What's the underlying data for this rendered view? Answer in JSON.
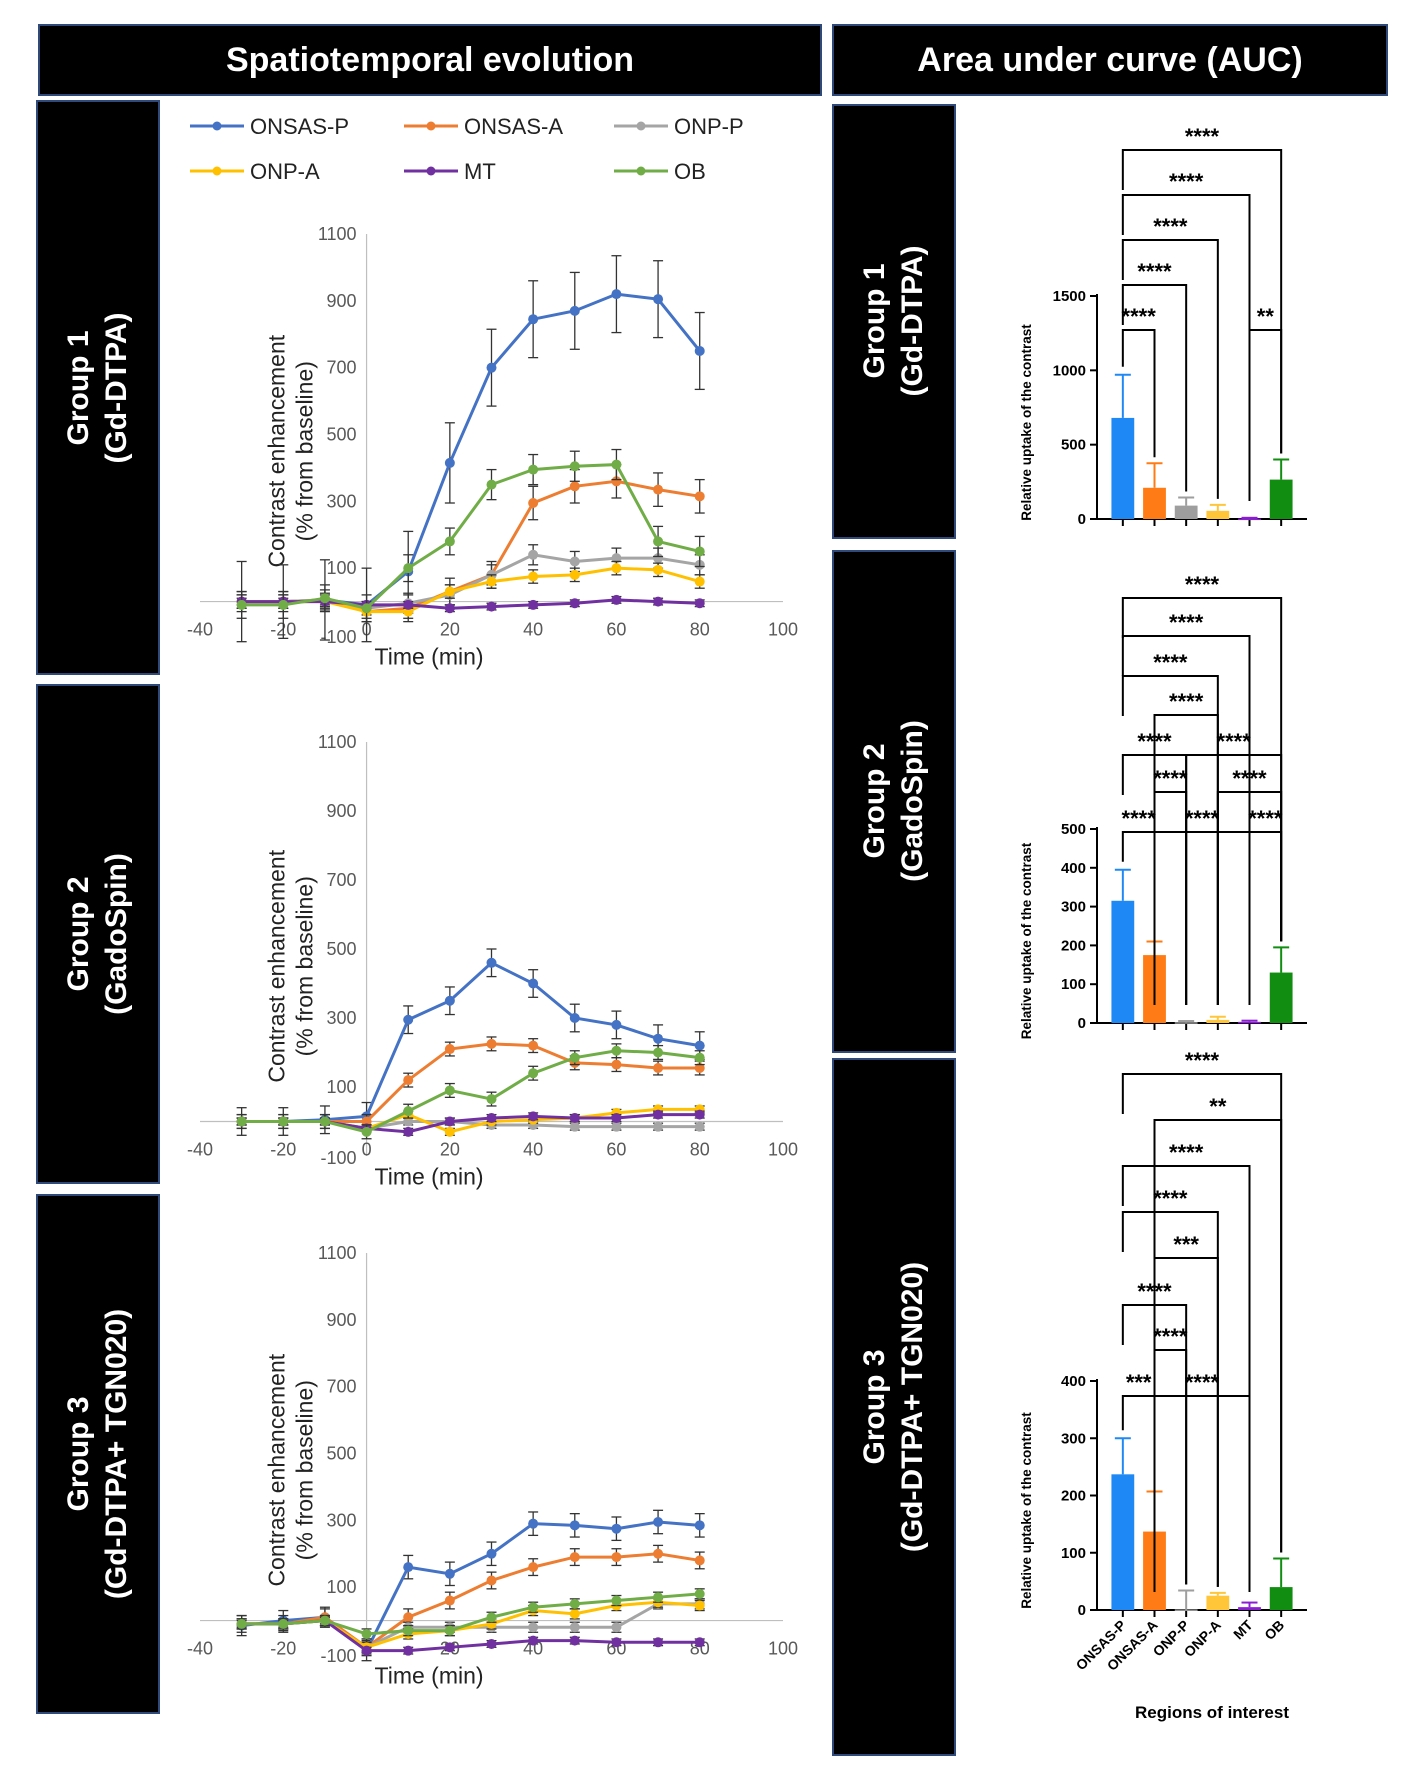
{
  "headers": {
    "left": "Spatiotemporal evolution",
    "right": "Area under curve (AUC)"
  },
  "groups": [
    {
      "line1": "Group 1",
      "line2": "(Gd-DTPA)"
    },
    {
      "line1": "Group 2",
      "line2": "(GadoSpin)"
    },
    {
      "line1": "Group 3",
      "line2": "(Gd-DTPA+ TGN020)"
    }
  ],
  "legend": [
    {
      "name": "ONSAS-P",
      "color": "#4472c4"
    },
    {
      "name": "ONSAS-A",
      "color": "#ed7d31"
    },
    {
      "name": "ONP-P",
      "color": "#a5a5a5"
    },
    {
      "name": "ONP-A",
      "color": "#ffc000"
    },
    {
      "name": "MT",
      "color": "#7030a0"
    },
    {
      "name": "OB",
      "color": "#70ad47"
    }
  ],
  "chart_data": [
    {
      "type": "line",
      "group": "Group 1 (Gd-DTPA)",
      "xlabel": "Time (min)",
      "ylabel_line1": "Contrast enhancement",
      "ylabel_line2": "(% from baseline)",
      "xlim": [
        -40,
        100
      ],
      "ylim": [
        -100,
        1100
      ],
      "x_ticks": [
        -40,
        -20,
        0,
        20,
        40,
        60,
        80,
        100
      ],
      "y_ticks": [
        -100,
        100,
        300,
        500,
        700,
        900,
        1100
      ],
      "x": [
        -30,
        -20,
        -10,
        0,
        10,
        20,
        30,
        40,
        50,
        60,
        70,
        80
      ],
      "series": [
        {
          "name": "ONSAS-P",
          "values": [
            0,
            0,
            5,
            -10,
            90,
            415,
            700,
            845,
            870,
            920,
            905,
            750
          ],
          "errors": [
            120,
            110,
            120,
            110,
            120,
            120,
            115,
            115,
            115,
            115,
            115,
            115
          ]
        },
        {
          "name": "ONSAS-A",
          "values": [
            0,
            0,
            5,
            -30,
            -20,
            30,
            80,
            295,
            345,
            360,
            335,
            315
          ],
          "errors": [
            30,
            30,
            30,
            30,
            40,
            40,
            40,
            50,
            50,
            50,
            50,
            50
          ]
        },
        {
          "name": "ONP-P",
          "values": [
            0,
            0,
            5,
            -20,
            -5,
            20,
            80,
            140,
            120,
            130,
            130,
            110
          ],
          "errors": [
            20,
            20,
            20,
            20,
            30,
            30,
            30,
            30,
            30,
            30,
            30,
            30
          ]
        },
        {
          "name": "ONP-A",
          "values": [
            0,
            0,
            0,
            -30,
            -30,
            30,
            60,
            75,
            80,
            100,
            95,
            60
          ],
          "errors": [
            20,
            20,
            20,
            20,
            20,
            20,
            20,
            20,
            20,
            20,
            20,
            20
          ]
        },
        {
          "name": "MT",
          "values": [
            0,
            0,
            0,
            -10,
            -10,
            -20,
            -15,
            -10,
            -5,
            5,
            0,
            -5
          ],
          "errors": [
            10,
            10,
            10,
            10,
            10,
            10,
            10,
            10,
            10,
            10,
            10,
            10
          ]
        },
        {
          "name": "OB",
          "values": [
            -10,
            -10,
            10,
            -20,
            100,
            180,
            350,
            395,
            405,
            410,
            180,
            150
          ],
          "errors": [
            40,
            40,
            40,
            40,
            40,
            40,
            45,
            45,
            45,
            45,
            45,
            45
          ]
        }
      ]
    },
    {
      "type": "line",
      "group": "Group 2 (GadoSpin)",
      "xlabel": "Time (min)",
      "ylabel_line1": "Contrast enhancement",
      "ylabel_line2": "(% from baseline)",
      "xlim": [
        -40,
        100
      ],
      "ylim": [
        -100,
        1100
      ],
      "x_ticks": [
        -40,
        -20,
        0,
        20,
        40,
        60,
        80,
        100
      ],
      "y_ticks": [
        -100,
        100,
        300,
        500,
        700,
        900,
        1100
      ],
      "x": [
        -30,
        -20,
        -10,
        0,
        10,
        20,
        30,
        40,
        50,
        60,
        70,
        80
      ],
      "series": [
        {
          "name": "ONSAS-P",
          "values": [
            0,
            0,
            5,
            15,
            295,
            350,
            460,
            400,
            300,
            280,
            240,
            220
          ],
          "errors": [
            40,
            40,
            40,
            40,
            40,
            40,
            40,
            40,
            40,
            40,
            40,
            40
          ]
        },
        {
          "name": "ONSAS-A",
          "values": [
            0,
            0,
            0,
            0,
            120,
            210,
            225,
            220,
            170,
            165,
            155,
            155
          ],
          "errors": [
            20,
            20,
            20,
            20,
            20,
            20,
            20,
            20,
            20,
            20,
            20,
            20
          ]
        },
        {
          "name": "ONP-P",
          "values": [
            0,
            0,
            0,
            -20,
            0,
            0,
            -10,
            -10,
            -15,
            -15,
            -15,
            -15
          ],
          "errors": [
            10,
            10,
            10,
            10,
            10,
            10,
            10,
            10,
            10,
            10,
            10,
            10
          ]
        },
        {
          "name": "ONP-A",
          "values": [
            0,
            0,
            0,
            -20,
            20,
            -30,
            0,
            5,
            10,
            25,
            35,
            35
          ],
          "errors": [
            10,
            10,
            10,
            10,
            10,
            10,
            10,
            10,
            10,
            10,
            10,
            10
          ]
        },
        {
          "name": "MT",
          "values": [
            0,
            0,
            0,
            -20,
            -30,
            0,
            10,
            15,
            10,
            10,
            20,
            20
          ],
          "errors": [
            10,
            10,
            10,
            10,
            10,
            10,
            10,
            10,
            10,
            10,
            10,
            10
          ]
        },
        {
          "name": "OB",
          "values": [
            0,
            0,
            0,
            -30,
            30,
            90,
            65,
            140,
            185,
            205,
            200,
            185
          ],
          "errors": [
            20,
            20,
            20,
            20,
            20,
            20,
            20,
            20,
            20,
            20,
            20,
            20
          ]
        }
      ]
    },
    {
      "type": "line",
      "group": "Group 3 (Gd-DTPA+ TGN020)",
      "xlabel": "Time (min)",
      "ylabel_line1": "Contrast enhancement",
      "ylabel_line2": "(% from baseline)",
      "xlim": [
        -40,
        100
      ],
      "ylim": [
        -100,
        1100
      ],
      "x_ticks": [
        -40,
        -20,
        0,
        20,
        40,
        60,
        80,
        100
      ],
      "y_ticks": [
        -100,
        100,
        300,
        500,
        700,
        900,
        1100
      ],
      "x": [
        -30,
        -20,
        -10,
        0,
        10,
        20,
        30,
        40,
        50,
        60,
        70,
        80
      ],
      "series": [
        {
          "name": "ONSAS-P",
          "values": [
            -15,
            0,
            10,
            -90,
            160,
            140,
            200,
            290,
            285,
            275,
            295,
            285
          ],
          "errors": [
            30,
            30,
            30,
            30,
            35,
            35,
            35,
            35,
            35,
            35,
            35,
            35
          ]
        },
        {
          "name": "ONSAS-A",
          "values": [
            -10,
            -10,
            10,
            -80,
            10,
            60,
            120,
            160,
            190,
            190,
            200,
            180
          ],
          "errors": [
            25,
            25,
            25,
            25,
            25,
            25,
            25,
            25,
            25,
            25,
            25,
            25
          ]
        },
        {
          "name": "ONP-P",
          "values": [
            -10,
            -10,
            0,
            -80,
            -20,
            -20,
            -20,
            -20,
            -20,
            -20,
            50,
            50
          ],
          "errors": [
            15,
            15,
            15,
            15,
            15,
            15,
            15,
            15,
            15,
            15,
            15,
            15
          ]
        },
        {
          "name": "ONP-A",
          "values": [
            -10,
            -10,
            0,
            -80,
            -40,
            -30,
            -10,
            30,
            20,
            45,
            55,
            45
          ],
          "errors": [
            15,
            15,
            15,
            15,
            15,
            15,
            15,
            15,
            15,
            15,
            15,
            15
          ]
        },
        {
          "name": "MT",
          "values": [
            -10,
            -10,
            0,
            -90,
            -90,
            -80,
            -70,
            -60,
            -60,
            -65,
            -65,
            -65
          ],
          "errors": [
            10,
            10,
            10,
            10,
            10,
            10,
            10,
            10,
            10,
            10,
            10,
            10
          ]
        },
        {
          "name": "OB",
          "values": [
            -10,
            -10,
            0,
            -40,
            -30,
            -30,
            10,
            40,
            50,
            60,
            70,
            80
          ],
          "errors": [
            15,
            15,
            15,
            15,
            15,
            15,
            15,
            15,
            15,
            15,
            15,
            15
          ]
        }
      ]
    },
    {
      "type": "bar",
      "group": "Group 1 (Gd-DTPA)",
      "ylabel": "Relative uptake of the contrast",
      "ylim": [
        0,
        1500
      ],
      "y_ticks": [
        0,
        500,
        1000,
        1500
      ],
      "categories": [
        "ONSAS-P",
        "ONSAS-A",
        "ONP-P",
        "ONP-A",
        "MT",
        "OB"
      ],
      "values": [
        680,
        210,
        90,
        55,
        3,
        265
      ],
      "errors": [
        290,
        165,
        55,
        40,
        5,
        135
      ],
      "sig": [
        {
          "from": 0,
          "to": 5,
          "label": "****"
        },
        {
          "from": 0,
          "to": 4,
          "label": "****"
        },
        {
          "from": 0,
          "to": 3,
          "label": "****"
        },
        {
          "from": 0,
          "to": 2,
          "label": "****"
        },
        {
          "from": 0,
          "to": 1,
          "label": "****"
        },
        {
          "from": 4,
          "to": 5,
          "label": "**"
        }
      ]
    },
    {
      "type": "bar",
      "group": "Group 2 (GadoSpin)",
      "ylabel": "Relative uptake of the contrast",
      "ylim": [
        0,
        500
      ],
      "y_ticks": [
        0,
        100,
        200,
        300,
        400,
        500
      ],
      "categories": [
        "ONSAS-P",
        "ONSAS-A",
        "ONP-P",
        "ONP-A",
        "MT",
        "OB"
      ],
      "values": [
        315,
        175,
        2,
        8,
        3,
        130
      ],
      "errors": [
        80,
        35,
        3,
        8,
        3,
        65
      ],
      "sig": [
        {
          "from": 0,
          "to": 5,
          "label": "****"
        },
        {
          "from": 0,
          "to": 4,
          "label": "****"
        },
        {
          "from": 0,
          "to": 3,
          "label": "****"
        },
        {
          "from": 1,
          "to": 3,
          "label": "****"
        },
        {
          "from": 0,
          "to": 2,
          "label": "****"
        },
        {
          "from": 2,
          "to": 5,
          "label": "****"
        },
        {
          "from": 1,
          "to": 2,
          "label": "****"
        },
        {
          "from": 3,
          "to": 5,
          "label": "****"
        },
        {
          "from": 0,
          "to": 1,
          "label": "****"
        },
        {
          "from": 1,
          "to": 4,
          "label": "****"
        },
        {
          "from": 4,
          "to": 5,
          "label": "****"
        }
      ]
    },
    {
      "type": "bar",
      "group": "Group 3 (Gd-DTPA+ TGN020)",
      "ylabel": "Relative uptake of the contrast",
      "xlabel": "Regions of interest",
      "ylim": [
        0,
        400
      ],
      "y_ticks": [
        0,
        100,
        200,
        300,
        400
      ],
      "categories": [
        "ONSAS-P",
        "ONSAS-A",
        "ONP-P",
        "ONP-A",
        "MT",
        "OB"
      ],
      "values": [
        237,
        137,
        1,
        25,
        5,
        40
      ],
      "errors": [
        63,
        70,
        33,
        5,
        8,
        50
      ],
      "sig": [
        {
          "from": 0,
          "to": 5,
          "label": "****"
        },
        {
          "from": 1,
          "to": 5,
          "label": "**"
        },
        {
          "from": 0,
          "to": 4,
          "label": "****"
        },
        {
          "from": 0,
          "to": 3,
          "label": "****"
        },
        {
          "from": 1,
          "to": 3,
          "label": "***"
        },
        {
          "from": 0,
          "to": 2,
          "label": "****"
        },
        {
          "from": 1,
          "to": 2,
          "label": "****"
        },
        {
          "from": 0,
          "to": 1,
          "label": "***"
        },
        {
          "from": 1,
          "to": 4,
          "label": "****"
        }
      ]
    }
  ]
}
